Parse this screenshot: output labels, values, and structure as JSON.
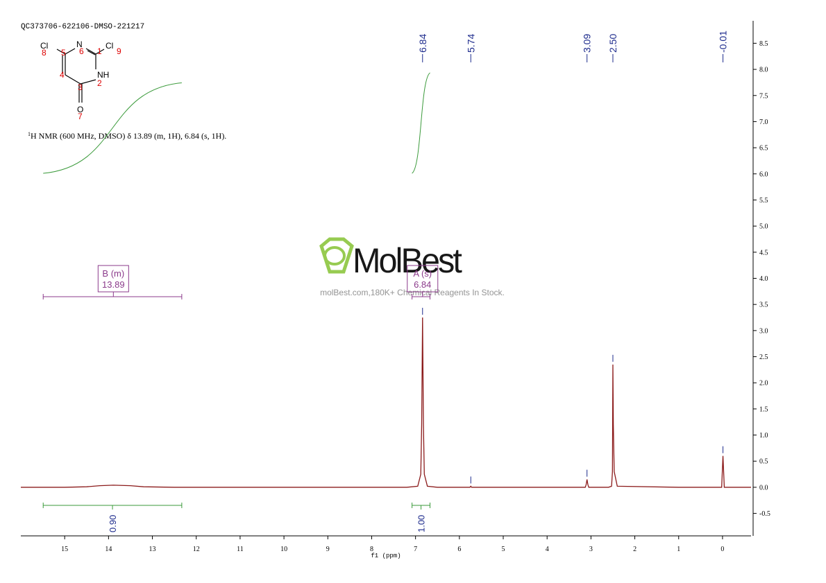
{
  "chart_data": {
    "type": "nmr",
    "sample_id": "QC373706-622106-DMSO-221217",
    "structure": {
      "labels": [
        "Cl",
        "N",
        "Cl",
        "NH",
        "O"
      ],
      "numbers": [
        "8",
        "5",
        "6",
        "1",
        "9",
        "4",
        "2",
        "3",
        "7"
      ]
    },
    "description": {
      "superscript": "1",
      "text": "H NMR (600 MHz, DMSO) δ 13.89 (m, 1H), 6.84 (s, 1H)."
    },
    "watermark": {
      "name": "MolBest",
      "tagline": "molBest.com,180K+ Chemical Reagents In Stock."
    },
    "x_label": "f1 (ppm)",
    "xlim": [
      16.0,
      -0.65
    ],
    "xticks": [
      15,
      14,
      13,
      12,
      11,
      10,
      9,
      8,
      7,
      6,
      5,
      4,
      3,
      2,
      1,
      0
    ],
    "ylim": [
      -0.93,
      8.93
    ],
    "yticks": [
      {
        "value": -0.5,
        "label": "-0.5"
      },
      {
        "value": 0,
        "label": "0.0"
      },
      0.5,
      {
        "value": 1,
        "label": "1.0"
      },
      1.5,
      {
        "value": 2,
        "label": "2.0"
      },
      2.5,
      {
        "value": 3,
        "label": "3.0"
      },
      3.5,
      {
        "value": 4,
        "label": "4.0"
      },
      4.5,
      {
        "value": 5,
        "label": "5.0"
      },
      5.5,
      {
        "value": 6,
        "label": "6.0"
      },
      6.5,
      {
        "value": 7,
        "label": "7.0"
      },
      7.5,
      {
        "value": 8,
        "label": "8.0"
      },
      8.5
    ],
    "series": [
      {
        "color": "#8b1a1a",
        "x": [
          16,
          15,
          14.5,
          14.2,
          13.89,
          13.5,
          13.2,
          12.5,
          11,
          9,
          7.2,
          6.95,
          6.88,
          6.86,
          6.84,
          6.82,
          6.8,
          6.73,
          6.5,
          5.76,
          5.74,
          5.72,
          4,
          3.13,
          3.11,
          3.09,
          3.07,
          3.05,
          2.6,
          2.53,
          2.51,
          2.5,
          2.49,
          2.47,
          2.4,
          1,
          0.02,
          -0.01,
          -0.04,
          -0.65
        ],
        "values": [
          0,
          0,
          0.01,
          0.03,
          0.04,
          0.03,
          0.01,
          0,
          0,
          0,
          0,
          0.02,
          0.25,
          1.2,
          3.25,
          1.2,
          0.25,
          0.02,
          0,
          0,
          0.02,
          0,
          0,
          0,
          0.05,
          0.15,
          0.05,
          0,
          0,
          0.02,
          0.3,
          2.35,
          1.2,
          0.3,
          0.02,
          0,
          0,
          0.6,
          0,
          0
        ]
      }
    ],
    "peaks": {
      "color": "#1c2a8c",
      "values": [
        6.84,
        5.74,
        3.09,
        2.5,
        -0.01
      ],
      "value_labels": [
        "6.84",
        "5.74",
        "3.09",
        "2.50",
        "-0.01"
      ]
    },
    "integrals": {
      "color": "#3a9a3a",
      "label_color": "#1c2a8c",
      "ranges": [
        [
          15.49,
          12.33
        ],
        [
          7.08,
          6.67
        ]
      ],
      "values": [
        0.9,
        1.0
      ],
      "value_labels": [
        "0.90",
        "1.00"
      ]
    },
    "multiplets": {
      "color": "#8b3a8b",
      "items": [
        {
          "name": "B (m)",
          "shift": 13.89,
          "range": [
            15.49,
            12.33
          ]
        },
        {
          "name": "A (s)",
          "shift": 6.84,
          "range": [
            7.08,
            6.67
          ]
        }
      ]
    }
  }
}
